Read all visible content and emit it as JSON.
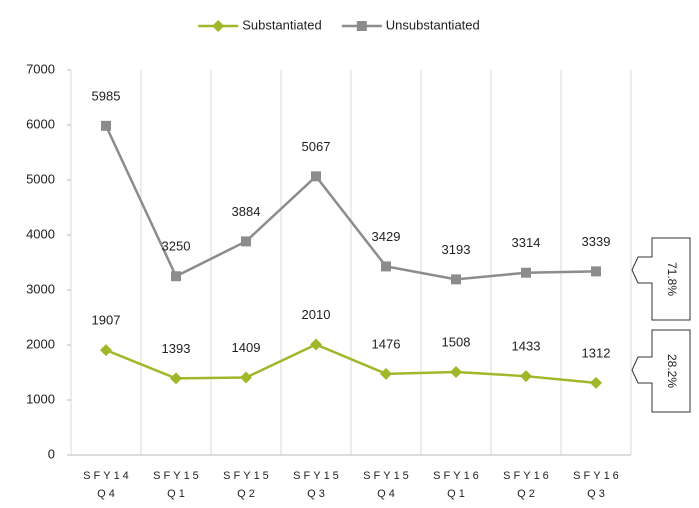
{
  "chart_data": {
    "type": "line",
    "categories": [
      [
        "SFY14",
        "Q4"
      ],
      [
        "SFY15",
        "Q1"
      ],
      [
        "SFY15",
        "Q2"
      ],
      [
        "SFY15",
        "Q3"
      ],
      [
        "SFY15",
        "Q4"
      ],
      [
        "SFY16",
        "Q1"
      ],
      [
        "SFY16",
        "Q2"
      ],
      [
        "SFY16",
        "Q3"
      ]
    ],
    "series": [
      {
        "name": "Substantiated",
        "color": "#9fb82a",
        "marker": "diamond",
        "values": [
          1907,
          1393,
          1409,
          2010,
          1476,
          1508,
          1433,
          1312
        ]
      },
      {
        "name": "Unsubstantiated",
        "color": "#8c8c8c",
        "marker": "square",
        "values": [
          5985,
          3250,
          3884,
          5067,
          3429,
          3193,
          3314,
          3339
        ]
      }
    ],
    "ylim": [
      0,
      7000
    ],
    "yticks": [
      0,
      1000,
      2000,
      3000,
      4000,
      5000,
      6000,
      7000
    ],
    "legend": "top",
    "grid": "vertical",
    "annotations": [
      "71.8%",
      "28.2%"
    ]
  }
}
